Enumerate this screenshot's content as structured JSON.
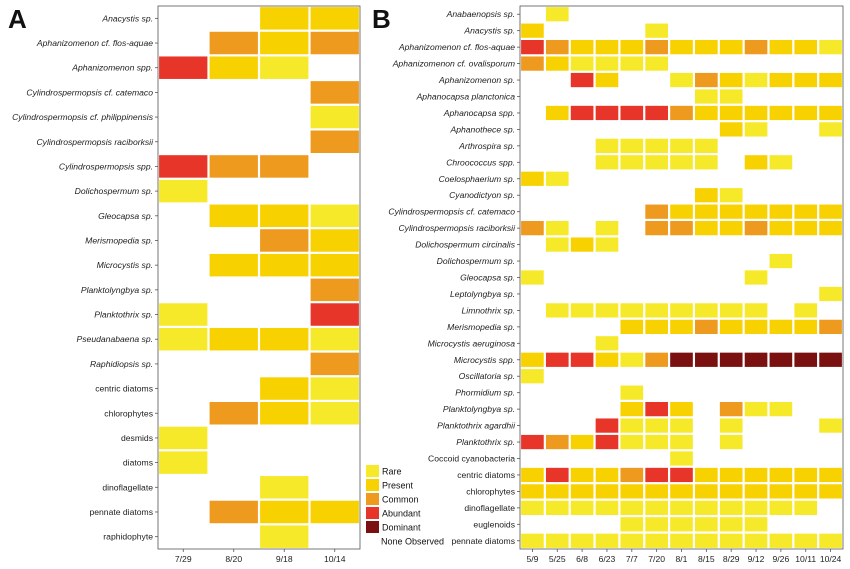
{
  "chart_data": [
    {
      "type": "heatmap",
      "panel": "A",
      "x": [
        "7/29",
        "8/20",
        "9/18",
        "10/14"
      ],
      "y": [
        {
          "label": "Anacystis sp.",
          "italic": true
        },
        {
          "label": "Aphanizomenon cf. flos-aquae",
          "italic": true
        },
        {
          "label": "Aphanizomenon spp.",
          "italic": true
        },
        {
          "label": "Cylindrospermopsis cf. catemaco",
          "italic": true
        },
        {
          "label": "Cylindrospermopsis cf. philippinensis",
          "italic": true
        },
        {
          "label": "Cylindrospermopsis raciborksii",
          "italic": true
        },
        {
          "label": "Cylindrospermopsis spp.",
          "italic": true
        },
        {
          "label": "Dolichospermum sp.",
          "italic": true
        },
        {
          "label": "Gleocapsa sp.",
          "italic": true
        },
        {
          "label": "Merismopedia sp.",
          "italic": true
        },
        {
          "label": "Microcystis sp.",
          "italic": true
        },
        {
          "label": "Planktolyngbya sp.",
          "italic": true
        },
        {
          "label": "Planktothrix sp.",
          "italic": true
        },
        {
          "label": "Pseudanabaena sp.",
          "italic": true
        },
        {
          "label": "Raphidiopsis sp.",
          "italic": true
        },
        {
          "label": "centric diatoms",
          "italic": false
        },
        {
          "label": "chlorophytes",
          "italic": false
        },
        {
          "label": "desmids",
          "italic": false
        },
        {
          "label": "diatoms",
          "italic": false
        },
        {
          "label": "dinoflagellate",
          "italic": false
        },
        {
          "label": "pennate diatoms",
          "italic": false
        },
        {
          "label": "raphidophyte",
          "italic": false
        }
      ],
      "values": [
        [
          0,
          0,
          2,
          2
        ],
        [
          0,
          3,
          2,
          3
        ],
        [
          4,
          2,
          1,
          0
        ],
        [
          0,
          0,
          0,
          3
        ],
        [
          0,
          0,
          0,
          1
        ],
        [
          0,
          0,
          0,
          3
        ],
        [
          4,
          3,
          3,
          0
        ],
        [
          1,
          0,
          0,
          0
        ],
        [
          0,
          2,
          2,
          1
        ],
        [
          0,
          0,
          3,
          2
        ],
        [
          0,
          2,
          2,
          2
        ],
        [
          0,
          0,
          0,
          3
        ],
        [
          1,
          0,
          0,
          4
        ],
        [
          1,
          2,
          2,
          1
        ],
        [
          0,
          0,
          0,
          3
        ],
        [
          0,
          0,
          2,
          1
        ],
        [
          0,
          3,
          2,
          1
        ],
        [
          1,
          0,
          0,
          0
        ],
        [
          1,
          0,
          0,
          0
        ],
        [
          0,
          0,
          1,
          0
        ],
        [
          0,
          3,
          2,
          2
        ],
        [
          0,
          0,
          1,
          0
        ]
      ]
    },
    {
      "type": "heatmap",
      "panel": "B",
      "x": [
        "5/9",
        "5/25",
        "6/8",
        "6/23",
        "7/7",
        "7/20",
        "8/1",
        "8/15",
        "8/29",
        "9/12",
        "9/26",
        "10/11",
        "10/24"
      ],
      "y": [
        {
          "label": "Anabaenopsis sp.",
          "italic": true
        },
        {
          "label": "Anacystis sp.",
          "italic": true
        },
        {
          "label": "Aphanizomenon cf. flos-aquae",
          "italic": true
        },
        {
          "label": "Aphanizomenon cf. ovalisporum",
          "italic": true
        },
        {
          "label": "Aphanizomenon sp.",
          "italic": true
        },
        {
          "label": "Aphanocapsa planctonica",
          "italic": true
        },
        {
          "label": "Aphanocapsa spp.",
          "italic": true
        },
        {
          "label": "Aphanothece sp.",
          "italic": true
        },
        {
          "label": "Arthrospira sp.",
          "italic": true
        },
        {
          "label": "Chroococcus spp.",
          "italic": true
        },
        {
          "label": "Coelosphaerium sp.",
          "italic": true
        },
        {
          "label": "Cyanodictyon sp.",
          "italic": true
        },
        {
          "label": "Cylindrospermopsis cf. catemaco",
          "italic": true
        },
        {
          "label": "Cylindrospermopsis raciborksii",
          "italic": true
        },
        {
          "label": "Dolichospermum circinalis",
          "italic": true
        },
        {
          "label": "Dolichospermum sp.",
          "italic": true
        },
        {
          "label": "Gleocapsa sp.",
          "italic": true
        },
        {
          "label": "Leptolyngbya sp.",
          "italic": true
        },
        {
          "label": "Limnothrix sp.",
          "italic": true
        },
        {
          "label": "Merismopedia sp.",
          "italic": true
        },
        {
          "label": "Microcystis aeruginosa",
          "italic": true
        },
        {
          "label": "Microcystis spp.",
          "italic": true
        },
        {
          "label": "Oscillatoria sp.",
          "italic": true
        },
        {
          "label": "Phormidium sp.",
          "italic": true
        },
        {
          "label": "Planktolyngbya sp.",
          "italic": true
        },
        {
          "label": "Planktothrix agardhii",
          "italic": true
        },
        {
          "label": "Planktothrix sp.",
          "italic": true
        },
        {
          "label": "Coccoid cyanobacteria",
          "italic": false
        },
        {
          "label": "centric diatoms",
          "italic": false
        },
        {
          "label": "chlorophytes",
          "italic": false
        },
        {
          "label": "dinoflagellate",
          "italic": false
        },
        {
          "label": "euglenoids",
          "italic": false
        },
        {
          "label": "pennate diatoms",
          "italic": false
        }
      ],
      "values": [
        [
          0,
          1,
          0,
          0,
          0,
          0,
          0,
          0,
          0,
          0,
          0,
          0,
          0
        ],
        [
          2,
          0,
          0,
          0,
          0,
          1,
          0,
          0,
          0,
          0,
          0,
          0,
          0
        ],
        [
          4,
          3,
          2,
          2,
          2,
          3,
          2,
          2,
          2,
          3,
          2,
          2,
          1
        ],
        [
          3,
          2,
          1,
          1,
          1,
          1,
          0,
          0,
          0,
          0,
          0,
          0,
          0
        ],
        [
          0,
          0,
          4,
          2,
          0,
          0,
          1,
          3,
          2,
          1,
          2,
          2,
          2
        ],
        [
          0,
          0,
          0,
          0,
          0,
          0,
          0,
          1,
          1,
          0,
          0,
          0,
          0
        ],
        [
          0,
          2,
          4,
          4,
          4,
          4,
          3,
          2,
          2,
          2,
          2,
          2,
          2
        ],
        [
          0,
          0,
          0,
          0,
          0,
          0,
          0,
          0,
          2,
          1,
          0,
          0,
          1
        ],
        [
          0,
          0,
          0,
          1,
          1,
          1,
          1,
          1,
          0,
          0,
          0,
          0,
          0
        ],
        [
          0,
          0,
          0,
          1,
          1,
          1,
          1,
          1,
          0,
          2,
          1,
          0,
          0
        ],
        [
          2,
          1,
          0,
          0,
          0,
          0,
          0,
          0,
          0,
          0,
          0,
          0,
          0
        ],
        [
          0,
          0,
          0,
          0,
          0,
          0,
          0,
          2,
          1,
          0,
          0,
          0,
          0
        ],
        [
          0,
          0,
          0,
          0,
          0,
          3,
          2,
          2,
          2,
          2,
          2,
          2,
          2
        ],
        [
          3,
          1,
          0,
          1,
          0,
          3,
          3,
          2,
          2,
          3,
          2,
          2,
          2
        ],
        [
          0,
          1,
          2,
          1,
          0,
          0,
          0,
          0,
          0,
          0,
          0,
          0,
          0
        ],
        [
          0,
          0,
          0,
          0,
          0,
          0,
          0,
          0,
          0,
          0,
          1,
          0,
          0
        ],
        [
          1,
          0,
          0,
          0,
          0,
          0,
          0,
          0,
          0,
          1,
          0,
          0,
          0
        ],
        [
          0,
          0,
          0,
          0,
          0,
          0,
          0,
          0,
          0,
          0,
          0,
          0,
          1
        ],
        [
          0,
          1,
          1,
          1,
          1,
          1,
          1,
          1,
          1,
          1,
          0,
          1,
          0
        ],
        [
          0,
          0,
          0,
          0,
          2,
          2,
          2,
          3,
          2,
          2,
          2,
          2,
          3
        ],
        [
          0,
          0,
          0,
          1,
          0,
          0,
          0,
          0,
          0,
          0,
          0,
          0,
          0
        ],
        [
          2,
          4,
          4,
          2,
          1,
          3,
          5,
          5,
          5,
          5,
          5,
          5,
          5
        ],
        [
          1,
          0,
          0,
          0,
          0,
          0,
          0,
          0,
          0,
          0,
          0,
          0,
          0
        ],
        [
          0,
          0,
          0,
          0,
          1,
          0,
          0,
          0,
          0,
          0,
          0,
          0,
          0
        ],
        [
          0,
          0,
          0,
          0,
          2,
          4,
          2,
          0,
          3,
          1,
          1,
          0,
          0
        ],
        [
          0,
          0,
          0,
          4,
          1,
          1,
          1,
          0,
          1,
          0,
          0,
          0,
          1
        ],
        [
          4,
          3,
          2,
          4,
          1,
          1,
          1,
          0,
          1,
          0,
          0,
          0,
          0
        ],
        [
          0,
          0,
          0,
          0,
          0,
          0,
          1,
          0,
          0,
          0,
          0,
          0,
          0
        ],
        [
          2,
          4,
          2,
          2,
          3,
          4,
          4,
          2,
          2,
          2,
          2,
          2,
          2
        ],
        [
          2,
          2,
          2,
          2,
          2,
          2,
          2,
          2,
          2,
          2,
          2,
          2,
          2
        ],
        [
          1,
          1,
          1,
          1,
          1,
          1,
          1,
          1,
          1,
          1,
          1,
          1,
          0
        ],
        [
          0,
          0,
          0,
          0,
          1,
          1,
          1,
          1,
          1,
          1,
          0,
          0,
          0
        ],
        [
          1,
          1,
          1,
          1,
          1,
          1,
          1,
          1,
          1,
          1,
          1,
          1,
          1
        ]
      ]
    }
  ],
  "legend": {
    "entries": [
      {
        "label": "Rare",
        "level": 1,
        "color": "#f5e92a"
      },
      {
        "label": "Present",
        "level": 2,
        "color": "#f8d200"
      },
      {
        "label": "Common",
        "level": 3,
        "color": "#ed9a1e"
      },
      {
        "label": "Abundant",
        "level": 4,
        "color": "#e8352a"
      },
      {
        "label": "Dominant",
        "level": 5,
        "color": "#7a1010"
      },
      {
        "label": "None Observed",
        "level": 0,
        "color": "#ffffff"
      }
    ]
  }
}
